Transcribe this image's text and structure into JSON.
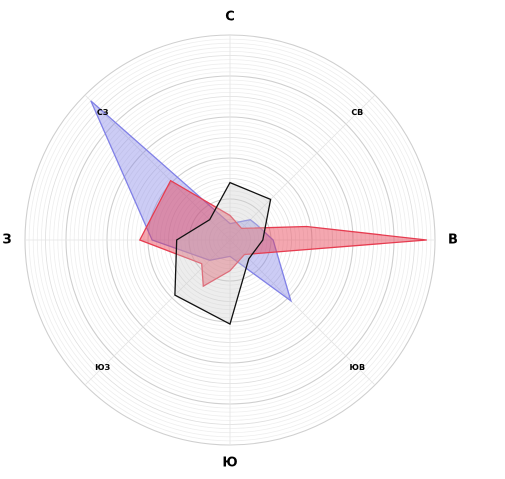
{
  "chart_data": {
    "type": "radar",
    "directions": [
      "С",
      "СВ",
      "В",
      "ЮВ",
      "Ю",
      "ЮЗ",
      "З",
      "СЗ"
    ],
    "direction_angles_deg": [
      0,
      45,
      90,
      135,
      180,
      225,
      270,
      315
    ],
    "major_directions": [
      "С",
      "В",
      "Ю",
      "З"
    ],
    "r_max": 100,
    "major_rings": [
      20,
      40,
      60,
      80,
      100
    ],
    "minor_rings": [
      10,
      30,
      50,
      70,
      90
    ],
    "grid": true,
    "series": [
      {
        "color": "#8080e6",
        "stroke": "#8080e6",
        "fill_opacity": 0.4,
        "points": [
          {
            "angle": 0,
            "r": 8
          },
          {
            "angle": 45,
            "r": 14
          },
          {
            "angle": 60,
            "r": 15
          },
          {
            "angle": 90,
            "r": 21
          },
          {
            "angle": 135,
            "r": 42
          },
          {
            "angle": 180,
            "r": 8
          },
          {
            "angle": 225,
            "r": 14
          },
          {
            "angle": 270,
            "r": 38
          },
          {
            "angle": 315,
            "r": 96
          }
        ]
      },
      {
        "color": "#e63c50",
        "stroke": "#e63c50",
        "fill_opacity": 0.45,
        "points": [
          {
            "angle": 0,
            "r": 12
          },
          {
            "angle": 45,
            "r": 8
          },
          {
            "angle": 80,
            "r": 38
          },
          {
            "angle": 90,
            "r": 96
          },
          {
            "angle": 135,
            "r": 10
          },
          {
            "angle": 180,
            "r": 15
          },
          {
            "angle": 210,
            "r": 26
          },
          {
            "angle": 230,
            "r": 18
          },
          {
            "angle": 270,
            "r": 44
          },
          {
            "angle": 315,
            "r": 41
          }
        ]
      },
      {
        "color": "#cccccc",
        "stroke": "#111111",
        "fill_opacity": 0.35,
        "points": [
          {
            "angle": 0,
            "r": 28
          },
          {
            "angle": 45,
            "r": 28
          },
          {
            "angle": 90,
            "r": 16
          },
          {
            "angle": 135,
            "r": 13
          },
          {
            "angle": 180,
            "r": 41
          },
          {
            "angle": 225,
            "r": 38
          },
          {
            "angle": 270,
            "r": 26
          },
          {
            "angle": 315,
            "r": 14
          }
        ]
      }
    ]
  }
}
